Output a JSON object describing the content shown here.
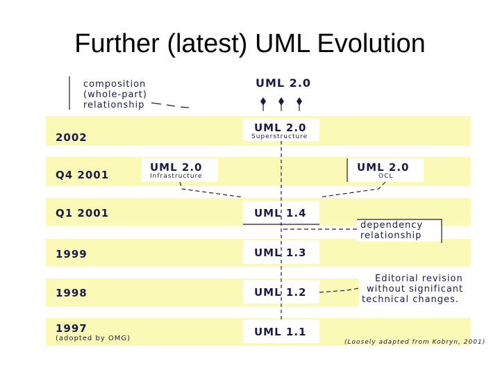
{
  "slide": {
    "title": "Further (latest) UML Evolution"
  },
  "annotations": {
    "composition": [
      "composition",
      "(whole-part)",
      "relationship"
    ],
    "dependency": [
      "dependency",
      "relationship"
    ],
    "editorial": [
      "Editorial revision",
      "without significant",
      "technical changes."
    ],
    "credit": "(Loosely adapted from Kobryn, 2001)"
  },
  "timeline": [
    {
      "year": "2002"
    },
    {
      "year": "Q4 2001"
    },
    {
      "year": "Q1 2001"
    },
    {
      "year": "1999"
    },
    {
      "year": "1998"
    },
    {
      "year": "1997",
      "note": "(adopted by OMG)"
    }
  ],
  "versions": {
    "top": {
      "name": "UML 2.0"
    },
    "superstructure": {
      "name": "UML 2.0",
      "sub": "Superstructure"
    },
    "infrastructure": {
      "name": "UML 2.0",
      "sub": "Infrastructure"
    },
    "ocl": {
      "name": "UML 2.0",
      "sub": "OCL"
    },
    "v14": {
      "name": "UML 1.4"
    },
    "v13": {
      "name": "UML 1.3"
    },
    "v12": {
      "name": "UML 1.2"
    },
    "v11": {
      "name": "UML 1.1"
    }
  },
  "colors": {
    "band": "#fafab6",
    "text": "#1a1a4a"
  }
}
